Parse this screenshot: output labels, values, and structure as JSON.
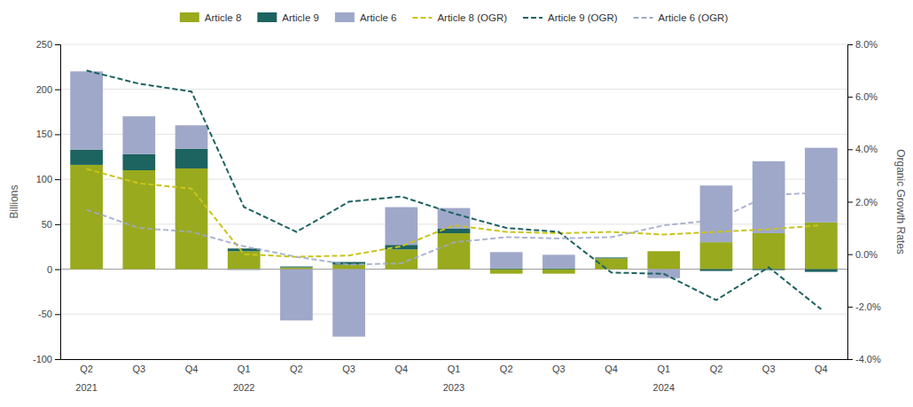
{
  "chart_data": {
    "type": "bar",
    "stacked": true,
    "grid": true,
    "legend": "top",
    "categories": [
      "Q2",
      "Q3",
      "Q4",
      "Q1",
      "Q2",
      "Q3",
      "Q4",
      "Q1",
      "Q2",
      "Q3",
      "Q4",
      "Q1",
      "Q2",
      "Q3",
      "Q4"
    ],
    "annotations": [
      "2021",
      null,
      null,
      "2022",
      null,
      null,
      null,
      "2023",
      null,
      null,
      null,
      "2024",
      null,
      null,
      null
    ],
    "ylabel": "Billions",
    "y2label": "Organic Growth Rates",
    "ylim": [
      -100,
      250
    ],
    "yticks": [
      -100,
      -50,
      0,
      50,
      100,
      150,
      200,
      250
    ],
    "y2lim": [
      -4.0,
      8.0
    ],
    "y2ticks": [
      {
        "value": -4.0,
        "label": "-4.0%"
      },
      {
        "value": -2.0,
        "label": "-2.0%"
      },
      {
        "value": 0.0,
        "label": "0.0%"
      },
      {
        "value": 2.0,
        "label": "2.0%"
      },
      {
        "value": 4.0,
        "label": "4.0%"
      },
      {
        "value": 6.0,
        "label": "6.0%"
      },
      {
        "value": 8.0,
        "label": "8.0%"
      }
    ],
    "series": [
      {
        "name": "Article 8",
        "type": "bar",
        "color": "#99aa1e",
        "values": [
          116,
          110,
          112,
          20,
          2,
          5,
          22,
          40,
          -5,
          -5,
          12,
          20,
          30,
          40,
          52
        ]
      },
      {
        "name": "Article 9",
        "type": "bar",
        "color": "#1d6360",
        "values": [
          17,
          18,
          22,
          3,
          1,
          3,
          5,
          5,
          1,
          1,
          1,
          0,
          -2,
          -1,
          -3
        ]
      },
      {
        "name": "Article 6",
        "type": "bar",
        "color": "#9fa8c9",
        "values": [
          87,
          42,
          26,
          -1,
          -57,
          -75,
          42,
          23,
          18,
          15,
          0,
          -10,
          63,
          80,
          83
        ]
      },
      {
        "name": "Article 8 (OGR)",
        "type": "line",
        "axis": "y2",
        "line_style": "dashed",
        "color": "#c9c41a",
        "values": [
          3.25,
          2.7,
          2.5,
          0.0,
          -0.1,
          -0.05,
          0.3,
          1.1,
          0.85,
          0.8,
          0.85,
          0.75,
          0.85,
          0.95,
          1.1
        ]
      },
      {
        "name": "Article 9 (OGR)",
        "type": "line",
        "axis": "y2",
        "line_style": "dashed",
        "color": "#1d6360",
        "values": [
          7.0,
          6.5,
          6.2,
          1.8,
          0.85,
          2.0,
          2.2,
          1.55,
          1.0,
          0.85,
          -0.7,
          -0.75,
          -1.75,
          -0.5,
          -2.1
        ]
      },
      {
        "name": "Article 6 (OGR)",
        "type": "line",
        "axis": "y2",
        "line_style": "dashed",
        "color": "#9fa8c9",
        "values": [
          1.7,
          1.0,
          0.85,
          0.3,
          -0.1,
          -0.4,
          -0.35,
          0.45,
          0.65,
          0.6,
          0.65,
          1.1,
          1.3,
          2.25,
          2.35
        ]
      }
    ]
  }
}
